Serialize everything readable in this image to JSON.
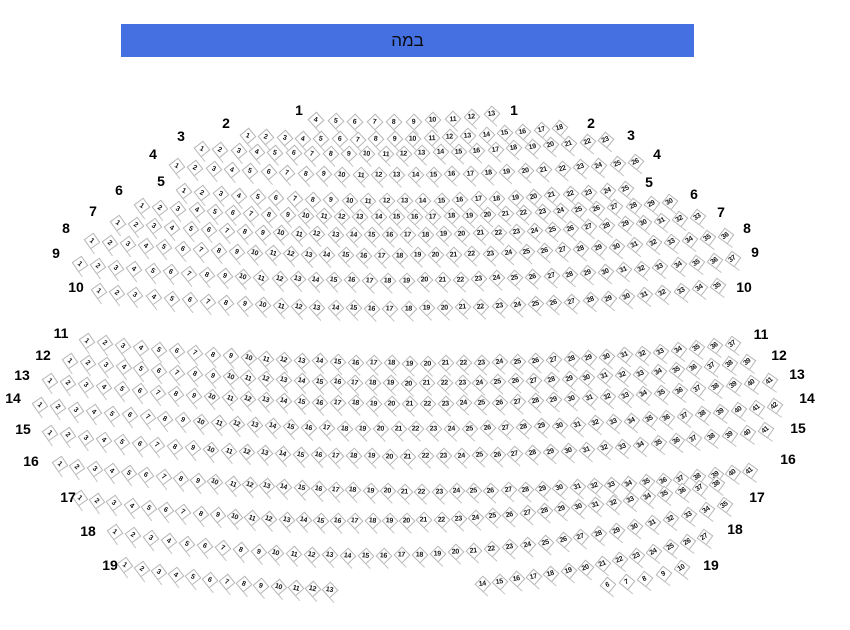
{
  "stage": {
    "label": "במה",
    "bg_color": "#4470e2"
  },
  "seat_style": {
    "fill_color": "#ffffff",
    "border_color": "#b6b6b6",
    "number_color": "#141414"
  },
  "rows": [
    {
      "row": "1",
      "segments": [
        {
          "start": 4,
          "end": 13
        }
      ]
    },
    {
      "row": "2",
      "segments": [
        {
          "start": 1,
          "end": 18
        }
      ]
    },
    {
      "row": "3",
      "segments": [
        {
          "start": 1,
          "end": 23
        }
      ]
    },
    {
      "row": "4",
      "segments": [
        {
          "start": 1,
          "end": 26
        }
      ]
    },
    {
      "row": "5",
      "segments": [
        {
          "start": 1,
          "end": 25
        }
      ]
    },
    {
      "row": "6",
      "segments": [
        {
          "start": 1,
          "end": 30
        }
      ]
    },
    {
      "row": "7",
      "segments": [
        {
          "start": 1,
          "end": 33
        }
      ]
    },
    {
      "row": "8",
      "segments": [
        {
          "start": 1,
          "end": 36
        }
      ]
    },
    {
      "row": "9",
      "segments": [
        {
          "start": 1,
          "end": 37
        }
      ]
    },
    {
      "row": "10",
      "segments": [
        {
          "start": 1,
          "end": 35
        }
      ]
    },
    {
      "row": "11",
      "segments": [
        {
          "start": 1,
          "end": 37
        }
      ]
    },
    {
      "row": "12",
      "segments": [
        {
          "start": 1,
          "end": 39
        }
      ]
    },
    {
      "row": "13",
      "segments": [
        {
          "start": 1,
          "end": 41
        }
      ]
    },
    {
      "row": "14",
      "segments": [
        {
          "start": 1,
          "end": 42
        }
      ]
    },
    {
      "row": "15",
      "segments": [
        {
          "start": 1,
          "end": 41
        }
      ]
    },
    {
      "row": "16",
      "segments": [
        {
          "start": 1,
          "end": 41
        }
      ]
    },
    {
      "row": "17",
      "segments": [
        {
          "start": 1,
          "end": 38
        }
      ]
    },
    {
      "row": "18",
      "segments": [
        {
          "start": 1,
          "end": 35
        }
      ]
    },
    {
      "row": "19",
      "segments": [
        {
          "start": 1,
          "end": 13
        },
        {
          "start": 14,
          "end": 27
        }
      ]
    },
    {
      "row": "",
      "segments": [
        {
          "start": 6,
          "end": 10
        }
      ]
    }
  ]
}
